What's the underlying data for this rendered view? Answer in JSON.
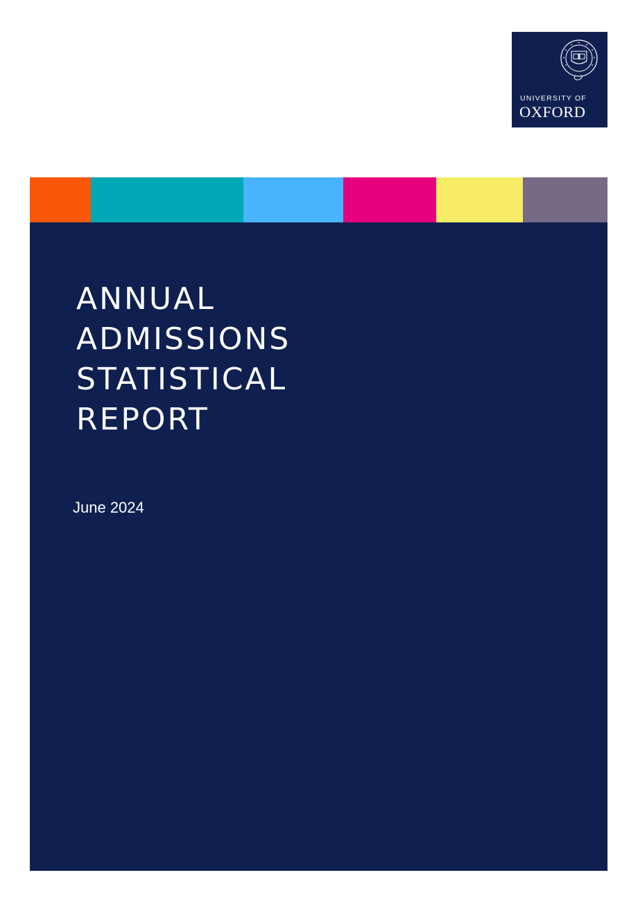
{
  "logo": {
    "line1": "UNIVERSITY OF",
    "line2": "OXFORD",
    "seal_text": "UNIVERSITY · OF · OXFORD",
    "background": "#0f2050"
  },
  "color_bar": [
    "#fa5708",
    "#00a9b5",
    "#48b4fd",
    "#e6007e",
    "#f7ec65",
    "#776a86"
  ],
  "report": {
    "title_lines": [
      "ANNUAL",
      "ADMISSIONS",
      "STATISTICAL",
      "REPORT"
    ],
    "date": "June 2024",
    "panel_color": "#0f2050"
  }
}
